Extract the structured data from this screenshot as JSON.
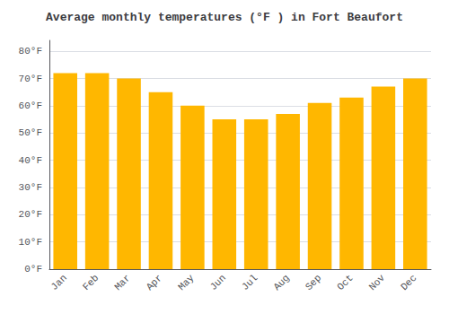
{
  "chart_data": {
    "type": "bar",
    "title": "Average monthly temperatures (°F ) in Fort Beaufort",
    "categories": [
      "Jan",
      "Feb",
      "Mar",
      "Apr",
      "May",
      "Jun",
      "Jul",
      "Aug",
      "Sep",
      "Oct",
      "Nov",
      "Dec"
    ],
    "values": [
      72,
      72,
      70,
      65,
      60,
      55,
      55,
      57,
      61,
      63,
      67,
      70
    ],
    "color": "#FFB700",
    "ylim": [
      0,
      84
    ],
    "yticks": [
      {
        "value": 0,
        "label": "0°F"
      },
      {
        "value": 10,
        "label": "10°F"
      },
      {
        "value": 20,
        "label": "20°F"
      },
      {
        "value": 30,
        "label": "30°F"
      },
      {
        "value": 40,
        "label": "40°F"
      },
      {
        "value": 50,
        "label": "50°F"
      },
      {
        "value": 60,
        "label": "60°F"
      },
      {
        "value": 70,
        "label": "70°F"
      },
      {
        "value": 80,
        "label": "80°F"
      }
    ],
    "grid": true
  }
}
